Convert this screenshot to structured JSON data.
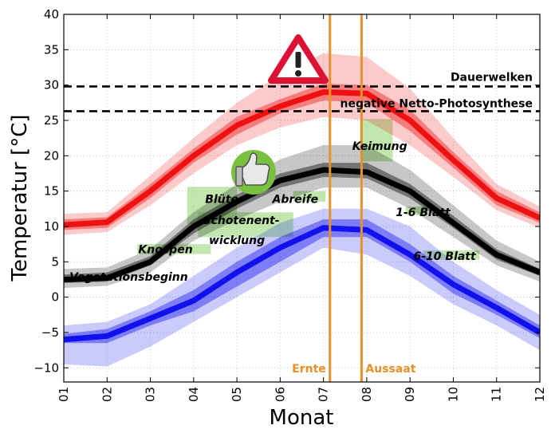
{
  "chart_data": {
    "type": "line",
    "xlabel": "Monat",
    "ylabel": "Temperatur [°C]",
    "xlim": [
      1,
      12
    ],
    "ylim": [
      -12,
      40
    ],
    "x_ticks": [
      "01",
      "02",
      "03",
      "04",
      "05",
      "06",
      "07",
      "08",
      "09",
      "10",
      "11",
      "12"
    ],
    "y_ticks": [
      -10,
      -5,
      0,
      5,
      10,
      15,
      20,
      25,
      30,
      35,
      40
    ],
    "grid": true,
    "x": [
      1,
      2,
      3,
      4,
      5,
      6,
      7,
      8,
      9,
      10,
      11,
      12
    ],
    "series": [
      {
        "color": "#ee1111",
        "values": [
          10.2,
          10.6,
          15,
          20,
          24.3,
          27,
          29,
          28.8,
          25,
          19.4,
          14,
          11.2
        ],
        "band_inner": {
          "lower": [
            9.5,
            9.8,
            14,
            19,
            23,
            26,
            27.8,
            27.5,
            23.5,
            18.3,
            13,
            10.5
          ],
          "upper": [
            11,
            11.3,
            16,
            21,
            25.5,
            28,
            30.2,
            30,
            26.5,
            20.5,
            15,
            12
          ]
        },
        "band_outer": {
          "lower": [
            8.8,
            9.2,
            13,
            17.5,
            21.5,
            24,
            25.5,
            25,
            21.5,
            17,
            12.3,
            9.8
          ],
          "upper": [
            11.8,
            12,
            17.2,
            22.5,
            27.5,
            31.5,
            34.5,
            34,
            29.5,
            22.5,
            16,
            12.8
          ]
        }
      },
      {
        "color": "#000000",
        "values": [
          2.5,
          2.7,
          5,
          10,
          13.5,
          16.5,
          18,
          17.7,
          15,
          10.5,
          6,
          3.5
        ],
        "band_inner": {
          "lower": [
            2,
            2.2,
            4.5,
            9,
            12.5,
            15.5,
            17,
            16.8,
            14,
            9.8,
            5.3,
            3
          ],
          "upper": [
            3.2,
            3.5,
            5.8,
            11,
            14.5,
            17.5,
            19,
            19,
            16,
            11.5,
            6.8,
            4
          ]
        },
        "band_outer": {
          "lower": [
            1.3,
            1.6,
            3.5,
            8,
            11,
            13.5,
            15.5,
            15.5,
            12.5,
            8.5,
            4.5,
            2.2
          ],
          "upper": [
            4,
            4.2,
            6.8,
            12,
            16,
            19.5,
            21.5,
            21.5,
            18,
            13,
            8,
            5
          ]
        }
      },
      {
        "color": "#1111ee",
        "values": [
          -6,
          -5.5,
          -3,
          -0.5,
          3.5,
          7,
          9.8,
          9.5,
          6,
          1.8,
          -1.5,
          -5
        ],
        "band_inner": {
          "lower": [
            -6.5,
            -6.5,
            -4,
            -2,
            1.5,
            5,
            8.5,
            8.5,
            5,
            0.5,
            -2.5,
            -5.8
          ],
          "upper": [
            -5.2,
            -4.5,
            -2,
            1,
            5,
            8.5,
            11,
            11,
            7.5,
            3,
            -0.5,
            -4
          ]
        },
        "band_outer": {
          "lower": [
            -9.5,
            -9.8,
            -7,
            -3.5,
            0,
            3.5,
            7,
            6,
            3,
            -1,
            -4,
            -7.5
          ],
          "upper": [
            -4,
            -3.5,
            -1,
            3,
            7,
            10.5,
            12.5,
            12.5,
            10,
            5,
            1,
            -2.5
          ]
        }
      }
    ],
    "hlines": [
      {
        "y": 29.8,
        "label": "Dauerwelken"
      },
      {
        "y": 26.3,
        "label": "negative Netto-Photosynthese"
      }
    ],
    "vlines": [
      {
        "x": 7.15,
        "label": "Ernte",
        "color": "#e8912a"
      },
      {
        "x": 7.88,
        "label": "Aussaat",
        "color": "#e8912a"
      }
    ],
    "annotations": [
      {
        "text": "Vegetationsbeginn",
        "x": 2.5,
        "y": 2.9
      },
      {
        "text": "Knospen",
        "x": 3.35,
        "y": 6.8
      },
      {
        "text": "Blüte",
        "x": 4.65,
        "y": 13.9
      },
      {
        "text": "Schotenent-",
        "x": 5.1,
        "y": 10.9
      },
      {
        "text": "wicklung",
        "x": 5.0,
        "y": 8.1
      },
      {
        "text": "Abreife",
        "x": 6.35,
        "y": 13.9
      },
      {
        "text": "Keimung",
        "x": 8.3,
        "y": 21.4
      },
      {
        "text": "1-6 Blatt",
        "x": 9.3,
        "y": 12.0
      },
      {
        "text": "6-10 Blatt",
        "x": 9.8,
        "y": 5.8
      }
    ],
    "highlight_boxes": [
      {
        "x0": 2.7,
        "x1": 4.4,
        "y0": 6.1,
        "y1": 7.5
      },
      {
        "x0": 3.85,
        "x1": 5.0,
        "y0": 10.3,
        "y1": 15.6
      },
      {
        "x0": 4.1,
        "x1": 6.3,
        "y0": 8.5,
        "y1": 12.0
      },
      {
        "x0": 6.3,
        "x1": 7.05,
        "y0": 13.5,
        "y1": 15.0
      },
      {
        "x0": 7.85,
        "x1": 8.6,
        "y0": 19.2,
        "y1": 25.2
      },
      {
        "x0": 8.9,
        "x1": 9.4,
        "y0": 11.6,
        "y1": 12.8
      },
      {
        "x0": 9.3,
        "x1": 10.6,
        "y0": 5.3,
        "y1": 6.6
      }
    ]
  }
}
